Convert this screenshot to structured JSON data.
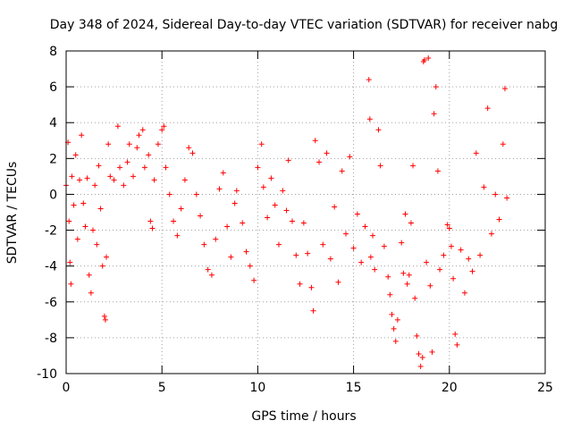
{
  "chart_data": {
    "type": "scatter",
    "title": "Day 348 of 2024, Sidereal Day-to-day VTEC variation (SDTVAR) for receiver nabg",
    "xlabel": "GPS time / hours",
    "ylabel": "SDTVAR / TECUs",
    "xlim": [
      0,
      25
    ],
    "ylim": [
      -10,
      8
    ],
    "xticks": [
      0,
      5,
      10,
      15,
      20,
      25
    ],
    "yticks": [
      -10,
      -8,
      -6,
      -4,
      -2,
      0,
      2,
      4,
      6,
      8
    ],
    "xtick_labels": [
      "0",
      "5",
      "10",
      "15",
      "20",
      "25"
    ],
    "ytick_labels": [
      "-10",
      "-8",
      "-6",
      "-4",
      "-2",
      "0",
      "2",
      "4",
      "6",
      "8"
    ],
    "grid": true,
    "marker": "+",
    "series": [
      {
        "name": "SDTVAR",
        "color": "#ff0000",
        "points": [
          [
            0.0,
            0.5
          ],
          [
            0.1,
            2.9
          ],
          [
            0.15,
            -1.5
          ],
          [
            0.2,
            -3.8
          ],
          [
            0.25,
            -5.0
          ],
          [
            0.3,
            1.0
          ],
          [
            0.4,
            -0.6
          ],
          [
            0.5,
            2.2
          ],
          [
            0.6,
            -2.5
          ],
          [
            0.7,
            0.8
          ],
          [
            0.8,
            3.3
          ],
          [
            0.9,
            -0.5
          ],
          [
            1.0,
            -1.8
          ],
          [
            1.1,
            0.9
          ],
          [
            1.2,
            -4.5
          ],
          [
            1.3,
            -5.5
          ],
          [
            1.4,
            -2.0
          ],
          [
            1.5,
            0.5
          ],
          [
            1.6,
            -2.8
          ],
          [
            1.7,
            1.6
          ],
          [
            1.8,
            -0.8
          ],
          [
            1.9,
            -4.0
          ],
          [
            2.0,
            -6.8
          ],
          [
            2.05,
            -7.0
          ],
          [
            2.1,
            -3.5
          ],
          [
            2.2,
            2.8
          ],
          [
            2.3,
            1.0
          ],
          [
            2.5,
            0.8
          ],
          [
            2.7,
            3.8
          ],
          [
            2.8,
            1.5
          ],
          [
            3.0,
            0.5
          ],
          [
            3.2,
            1.8
          ],
          [
            3.3,
            2.8
          ],
          [
            3.5,
            1.0
          ],
          [
            3.7,
            2.6
          ],
          [
            3.8,
            3.3
          ],
          [
            4.0,
            3.6
          ],
          [
            4.1,
            1.5
          ],
          [
            4.3,
            2.2
          ],
          [
            4.4,
            -1.5
          ],
          [
            4.5,
            -1.9
          ],
          [
            4.6,
            0.8
          ],
          [
            4.8,
            2.8
          ],
          [
            5.0,
            3.6
          ],
          [
            5.1,
            3.8
          ],
          [
            5.2,
            1.5
          ],
          [
            5.4,
            0.0
          ],
          [
            5.6,
            -1.5
          ],
          [
            5.8,
            -2.3
          ],
          [
            6.0,
            -0.8
          ],
          [
            6.2,
            0.8
          ],
          [
            6.4,
            2.6
          ],
          [
            6.6,
            2.3
          ],
          [
            6.8,
            0.0
          ],
          [
            7.0,
            -1.2
          ],
          [
            7.2,
            -2.8
          ],
          [
            7.4,
            -4.2
          ],
          [
            7.6,
            -4.5
          ],
          [
            7.8,
            -2.5
          ],
          [
            8.0,
            0.3
          ],
          [
            8.2,
            1.2
          ],
          [
            8.4,
            -1.8
          ],
          [
            8.6,
            -3.5
          ],
          [
            8.8,
            -0.5
          ],
          [
            8.9,
            0.2
          ],
          [
            9.2,
            -1.6
          ],
          [
            9.4,
            -3.2
          ],
          [
            9.6,
            -4.0
          ],
          [
            9.8,
            -4.8
          ],
          [
            10.0,
            1.5
          ],
          [
            10.2,
            2.8
          ],
          [
            10.3,
            0.4
          ],
          [
            10.5,
            -1.3
          ],
          [
            10.7,
            0.9
          ],
          [
            10.9,
            -0.6
          ],
          [
            11.1,
            -2.8
          ],
          [
            11.3,
            0.2
          ],
          [
            11.5,
            -0.9
          ],
          [
            11.6,
            1.9
          ],
          [
            11.8,
            -1.5
          ],
          [
            12.0,
            -3.4
          ],
          [
            12.2,
            -5.0
          ],
          [
            12.4,
            -1.6
          ],
          [
            12.6,
            -3.3
          ],
          [
            12.8,
            -5.2
          ],
          [
            12.9,
            -6.5
          ],
          [
            13.0,
            3.0
          ],
          [
            13.2,
            1.8
          ],
          [
            13.4,
            -2.8
          ],
          [
            13.6,
            2.3
          ],
          [
            13.8,
            -3.6
          ],
          [
            14.0,
            -0.7
          ],
          [
            14.2,
            -4.9
          ],
          [
            14.4,
            1.3
          ],
          [
            14.6,
            -2.2
          ],
          [
            14.8,
            2.1
          ],
          [
            15.0,
            -3.0
          ],
          [
            15.2,
            -1.1
          ],
          [
            15.4,
            -3.8
          ],
          [
            15.6,
            -1.8
          ],
          [
            15.8,
            6.4
          ],
          [
            15.85,
            4.2
          ],
          [
            15.9,
            -3.5
          ],
          [
            16.0,
            -2.3
          ],
          [
            16.1,
            -4.2
          ],
          [
            16.3,
            3.6
          ],
          [
            16.4,
            1.6
          ],
          [
            16.6,
            -2.9
          ],
          [
            16.8,
            -4.6
          ],
          [
            16.9,
            -5.6
          ],
          [
            17.0,
            -6.7
          ],
          [
            17.1,
            -7.5
          ],
          [
            17.2,
            -8.2
          ],
          [
            17.3,
            -7.0
          ],
          [
            17.5,
            -2.7
          ],
          [
            17.6,
            -4.4
          ],
          [
            17.7,
            -1.1
          ],
          [
            17.8,
            -5.0
          ],
          [
            17.9,
            -4.5
          ],
          [
            18.0,
            -1.6
          ],
          [
            18.1,
            1.6
          ],
          [
            18.2,
            -5.8
          ],
          [
            18.3,
            -7.9
          ],
          [
            18.4,
            -8.9
          ],
          [
            18.5,
            -9.6
          ],
          [
            18.6,
            -9.1
          ],
          [
            18.65,
            7.4
          ],
          [
            18.7,
            7.5
          ],
          [
            18.8,
            -3.8
          ],
          [
            18.9,
            7.6
          ],
          [
            19.0,
            -5.1
          ],
          [
            19.1,
            -8.8
          ],
          [
            19.2,
            4.5
          ],
          [
            19.3,
            6.0
          ],
          [
            19.4,
            1.3
          ],
          [
            19.5,
            -4.2
          ],
          [
            19.7,
            -3.4
          ],
          [
            19.9,
            -1.7
          ],
          [
            20.0,
            -1.9
          ],
          [
            20.1,
            -2.9
          ],
          [
            20.2,
            -4.7
          ],
          [
            20.3,
            -7.8
          ],
          [
            20.4,
            -8.4
          ],
          [
            20.6,
            -3.1
          ],
          [
            20.8,
            -5.5
          ],
          [
            21.0,
            -3.6
          ],
          [
            21.2,
            -4.3
          ],
          [
            21.4,
            2.3
          ],
          [
            21.6,
            -3.4
          ],
          [
            21.8,
            0.4
          ],
          [
            22.0,
            4.8
          ],
          [
            22.2,
            -2.2
          ],
          [
            22.4,
            0.0
          ],
          [
            22.6,
            -1.4
          ],
          [
            22.8,
            2.8
          ],
          [
            22.9,
            5.9
          ],
          [
            23.0,
            -0.2
          ]
        ]
      }
    ]
  }
}
